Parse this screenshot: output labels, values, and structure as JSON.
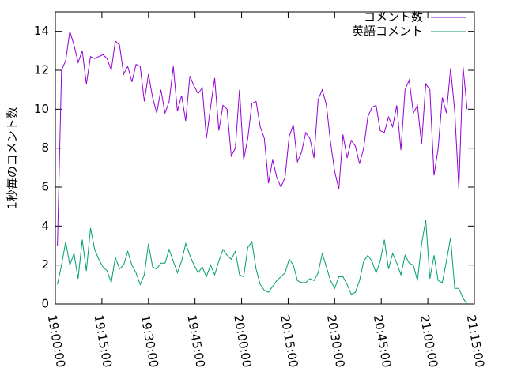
{
  "chart_data": {
    "type": "line",
    "ylabel": "1秒毎のコメント数",
    "x": [
      "19:00:40",
      "19:02:00",
      "19:03:20",
      "19:04:40",
      "19:06:00",
      "19:07:20",
      "19:08:40",
      "19:10:00",
      "19:11:20",
      "19:12:40",
      "19:14:00",
      "19:15:20",
      "19:16:40",
      "19:18:00",
      "19:19:20",
      "19:20:40",
      "19:22:00",
      "19:23:20",
      "19:24:40",
      "19:26:00",
      "19:27:20",
      "19:28:40",
      "19:30:00",
      "19:31:20",
      "19:32:40",
      "19:34:00",
      "19:35:20",
      "19:36:40",
      "19:38:00",
      "19:39:20",
      "19:40:40",
      "19:42:00",
      "19:43:20",
      "19:44:40",
      "19:46:00",
      "19:47:20",
      "19:48:40",
      "19:50:00",
      "19:51:20",
      "19:52:40",
      "19:54:00",
      "19:55:20",
      "19:56:40",
      "19:58:00",
      "19:59:20",
      "20:00:40",
      "20:02:00",
      "20:03:20",
      "20:04:40",
      "20:06:00",
      "20:07:20",
      "20:08:40",
      "20:10:00",
      "20:11:20",
      "20:12:40",
      "20:14:00",
      "20:15:20",
      "20:16:40",
      "20:18:00",
      "20:19:20",
      "20:20:40",
      "20:22:00",
      "20:23:20",
      "20:24:40",
      "20:26:00",
      "20:27:20",
      "20:28:40",
      "20:30:00",
      "20:31:20",
      "20:32:40",
      "20:34:00",
      "20:35:20",
      "20:36:40",
      "20:38:00",
      "20:39:20",
      "20:40:40",
      "20:42:00",
      "20:43:20",
      "20:44:40",
      "20:46:00",
      "20:47:20",
      "20:48:40",
      "20:50:00",
      "20:51:20",
      "20:52:40",
      "20:54:00",
      "20:55:20",
      "20:56:40",
      "20:58:00",
      "20:59:20",
      "21:00:40",
      "21:02:00",
      "21:03:20",
      "21:04:40",
      "21:06:00",
      "21:07:20",
      "21:08:40",
      "21:10:00",
      "21:11:20",
      "21:12:40"
    ],
    "series": [
      {
        "name": "コメント数",
        "color": "#9400d3",
        "values": [
          3,
          12,
          12.5,
          14,
          13.3,
          12.4,
          13,
          11.3,
          12.7,
          12.6,
          12.7,
          12.8,
          12.6,
          12,
          13.5,
          13.3,
          11.8,
          12.2,
          11.4,
          12.3,
          12.2,
          10.4,
          11.8,
          10.6,
          9.8,
          11,
          9.8,
          10.4,
          12.2,
          9.9,
          10.7,
          9.4,
          11.7,
          11.2,
          10.8,
          11.1,
          8.5,
          10.1,
          11.6,
          8.9,
          10.2,
          10,
          7.6,
          8,
          11,
          7.4,
          8.5,
          10.3,
          10.4,
          9.1,
          8.5,
          6.2,
          7.4,
          6.5,
          6,
          6.5,
          8.6,
          9.2,
          7.3,
          7.8,
          8.8,
          8.5,
          7.5,
          10.5,
          11,
          10.2,
          8.3,
          6.8,
          5.9,
          8.7,
          7.5,
          8.4,
          8.1,
          7.2,
          8,
          9.6,
          10.1,
          10.2,
          8.9,
          8.8,
          9.6,
          9.1,
          10.2,
          7.9,
          11,
          11.5,
          9.8,
          10.2,
          8.2,
          11.3,
          11,
          6.6,
          8,
          10.6,
          9.8,
          12.1,
          9.9,
          5.9,
          12.2,
          10
        ]
      },
      {
        "name": "英語コメント",
        "color": "#009e73",
        "values": [
          1,
          2,
          3.2,
          2,
          2.6,
          1.3,
          3.3,
          1.7,
          3.9,
          2.8,
          2.3,
          1.9,
          1.7,
          1.1,
          2.4,
          1.8,
          2,
          2.7,
          2,
          1.6,
          1,
          1.5,
          3.1,
          1.9,
          1.8,
          2.1,
          2.1,
          2.8,
          2.2,
          1.6,
          2.2,
          3.1,
          2.5,
          2,
          1.6,
          1.9,
          1.4,
          2,
          1.5,
          2.2,
          2.8,
          2.5,
          2.3,
          2.7,
          1.5,
          1.4,
          2.9,
          3.2,
          1.8,
          1,
          0.7,
          0.6,
          0.9,
          1.2,
          1.4,
          1.6,
          2.3,
          2,
          1.2,
          1.1,
          1.1,
          1.3,
          1.2,
          1.6,
          2.6,
          1.9,
          1.2,
          0.8,
          1.4,
          1.4,
          1,
          0.5,
          0.6,
          1.2,
          2.2,
          2.5,
          2.2,
          1.6,
          2.2,
          3.3,
          1.8,
          2.6,
          2.1,
          1.5,
          2.5,
          2.1,
          2,
          1.2,
          3.1,
          4.3,
          1.3,
          2.5,
          1.2,
          1.1,
          2.2,
          3.4,
          0.8,
          0.8,
          0.3,
          0
        ]
      }
    ],
    "xlim": [
      "19:00:00",
      "21:15:00"
    ],
    "xticks": [
      "19:00:00",
      "19:15:00",
      "19:30:00",
      "19:45:00",
      "20:00:00",
      "20:15:00",
      "20:30:00",
      "20:45:00",
      "21:00:00",
      "21:15:00"
    ],
    "ylim": [
      0,
      15
    ],
    "yticks": [
      0,
      2,
      4,
      6,
      8,
      10,
      12,
      14
    ],
    "legend": "top-right"
  }
}
